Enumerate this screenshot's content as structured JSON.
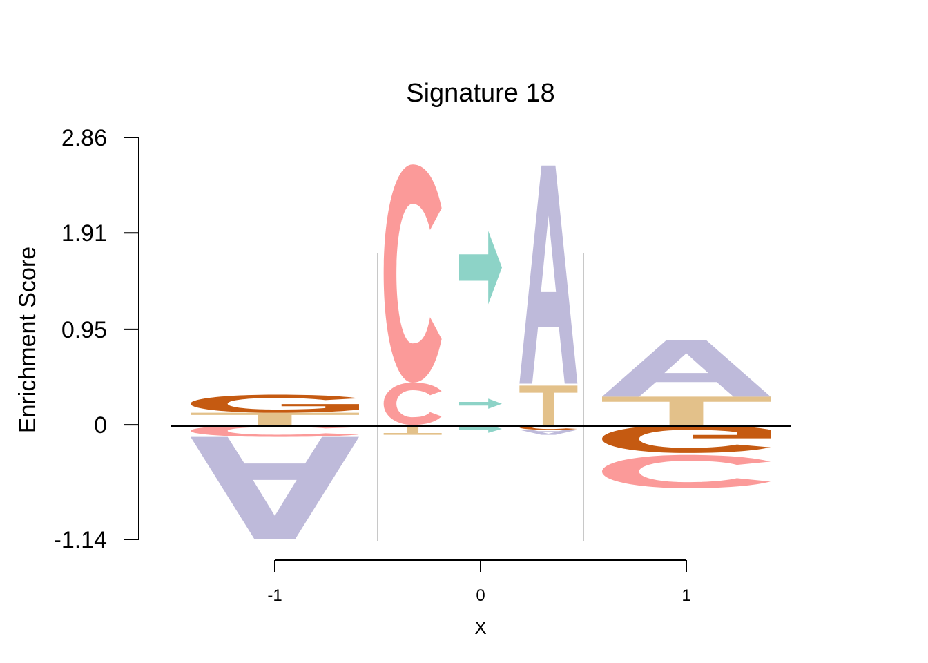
{
  "chart_data": {
    "type": "sequence-logo",
    "title": "Signature 18",
    "xlabel": "X",
    "ylabel": "Enrichment Score",
    "ylim": [
      -1.14,
      2.86
    ],
    "yticks": [
      "2.86",
      "1.91",
      "0.95",
      "0",
      "-1.14"
    ],
    "ytick_values": [
      2.86,
      1.91,
      0.95,
      0,
      -1.14
    ],
    "xticks": [
      "-1",
      "0",
      "1"
    ],
    "xtick_values": [
      -1,
      0,
      1
    ],
    "colors": {
      "A": "#bebada",
      "C": "#fb9a99",
      "G": "#c55a11",
      "T": "#e3c18a",
      "arrow": "#8dd3c7"
    },
    "positions": [
      {
        "x": -1,
        "positive": [
          {
            "letter": "T",
            "from": 0.0,
            "to": 0.12
          },
          {
            "letter": "G",
            "from": 0.12,
            "to": 0.3
          }
        ],
        "negative": [
          {
            "letter": "C",
            "from": 0.0,
            "to": -0.12
          },
          {
            "letter": "A",
            "from": -0.12,
            "to": -1.14
          }
        ]
      },
      {
        "x": -0.33,
        "positive": [
          {
            "letter": "C",
            "from": 0.0,
            "to": 0.42
          },
          {
            "letter": "C",
            "from": 0.42,
            "to": 2.59
          }
        ],
        "negative": [
          {
            "letter": "T",
            "from": 0.0,
            "to": -0.1
          }
        ]
      },
      {
        "x": 0,
        "positive": [
          {
            "letter": "arrow",
            "from": 0.16,
            "to": 0.26
          },
          {
            "letter": "arrow",
            "from": 1.2,
            "to": 1.93
          }
        ],
        "negative": [
          {
            "letter": "arrow",
            "from": 0.0,
            "to": -0.08
          }
        ]
      },
      {
        "x": 0.33,
        "positive": [
          {
            "letter": "T",
            "from": 0.0,
            "to": 0.39
          },
          {
            "letter": "A",
            "from": 0.41,
            "to": 2.58
          }
        ],
        "negative": [
          {
            "letter": "G",
            "from": 0.0,
            "to": -0.05
          },
          {
            "letter": "A",
            "from": -0.05,
            "to": -0.1
          }
        ]
      },
      {
        "x": 1,
        "positive": [
          {
            "letter": "T",
            "from": 0.0,
            "to": 0.28
          },
          {
            "letter": "A",
            "from": 0.28,
            "to": 0.84
          }
        ],
        "negative": [
          {
            "letter": "G",
            "from": 0.0,
            "to": -0.28
          },
          {
            "letter": "C",
            "from": -0.3,
            "to": -0.63
          }
        ]
      }
    ]
  }
}
